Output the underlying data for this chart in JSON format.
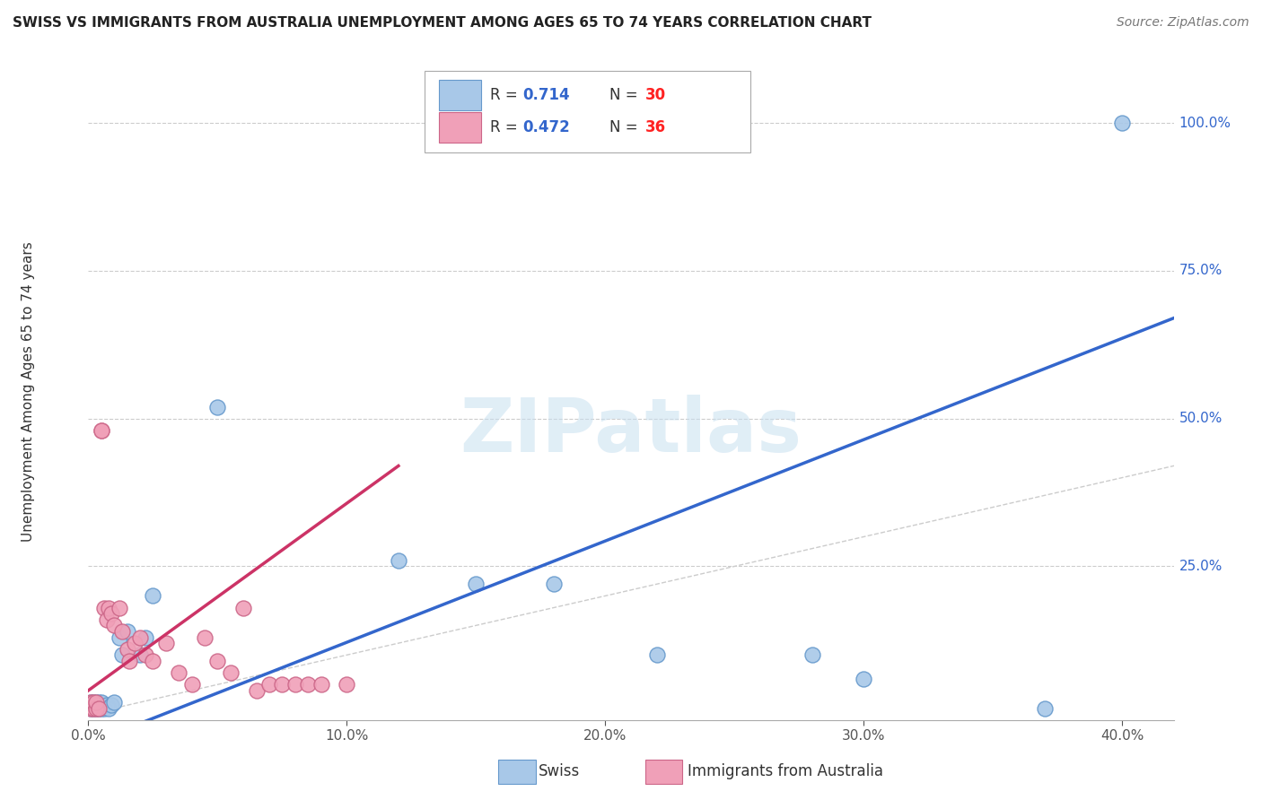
{
  "title": "SWISS VS IMMIGRANTS FROM AUSTRALIA UNEMPLOYMENT AMONG AGES 65 TO 74 YEARS CORRELATION CHART",
  "source": "Source: ZipAtlas.com",
  "ylabel": "Unemployment Among Ages 65 to 74 years",
  "swiss_color": "#A8C8E8",
  "swiss_edge_color": "#6699CC",
  "australia_color": "#F0A0B8",
  "australia_edge_color": "#CC6688",
  "swiss_line_color": "#3366CC",
  "australia_line_color": "#CC3366",
  "ref_line_color": "#CCCCCC",
  "swiss_R": 0.714,
  "swiss_N": 30,
  "australia_R": 0.472,
  "australia_N": 36,
  "watermark": "ZIPatlas",
  "xlim": [
    0.0,
    0.42
  ],
  "ylim": [
    -0.01,
    1.1
  ],
  "swiss_x": [
    0.001,
    0.001,
    0.002,
    0.002,
    0.003,
    0.003,
    0.004,
    0.004,
    0.005,
    0.005,
    0.006,
    0.007,
    0.008,
    0.009,
    0.01,
    0.012,
    0.013,
    0.015,
    0.02,
    0.022,
    0.025,
    0.05,
    0.12,
    0.15,
    0.18,
    0.22,
    0.28,
    0.3,
    0.37,
    0.4
  ],
  "swiss_y": [
    0.01,
    0.02,
    0.01,
    0.02,
    0.01,
    0.02,
    0.01,
    0.02,
    0.01,
    0.02,
    0.01,
    0.015,
    0.01,
    0.015,
    0.02,
    0.13,
    0.1,
    0.14,
    0.1,
    0.13,
    0.2,
    0.52,
    0.26,
    0.22,
    0.22,
    0.1,
    0.1,
    0.06,
    0.01,
    1.0
  ],
  "australia_x": [
    0.001,
    0.001,
    0.002,
    0.002,
    0.003,
    0.003,
    0.004,
    0.005,
    0.005,
    0.006,
    0.007,
    0.008,
    0.009,
    0.01,
    0.012,
    0.013,
    0.015,
    0.016,
    0.018,
    0.02,
    0.022,
    0.025,
    0.03,
    0.035,
    0.04,
    0.045,
    0.05,
    0.055,
    0.06,
    0.065,
    0.07,
    0.075,
    0.08,
    0.085,
    0.09,
    0.1
  ],
  "australia_y": [
    0.01,
    0.02,
    0.01,
    0.02,
    0.01,
    0.02,
    0.01,
    0.48,
    0.48,
    0.18,
    0.16,
    0.18,
    0.17,
    0.15,
    0.18,
    0.14,
    0.11,
    0.09,
    0.12,
    0.13,
    0.1,
    0.09,
    0.12,
    0.07,
    0.05,
    0.13,
    0.09,
    0.07,
    0.18,
    0.04,
    0.05,
    0.05,
    0.05,
    0.05,
    0.05,
    0.05
  ],
  "xticks": [
    0.0,
    0.1,
    0.2,
    0.3,
    0.4
  ],
  "yticks": [
    0.25,
    0.5,
    0.75,
    1.0
  ]
}
